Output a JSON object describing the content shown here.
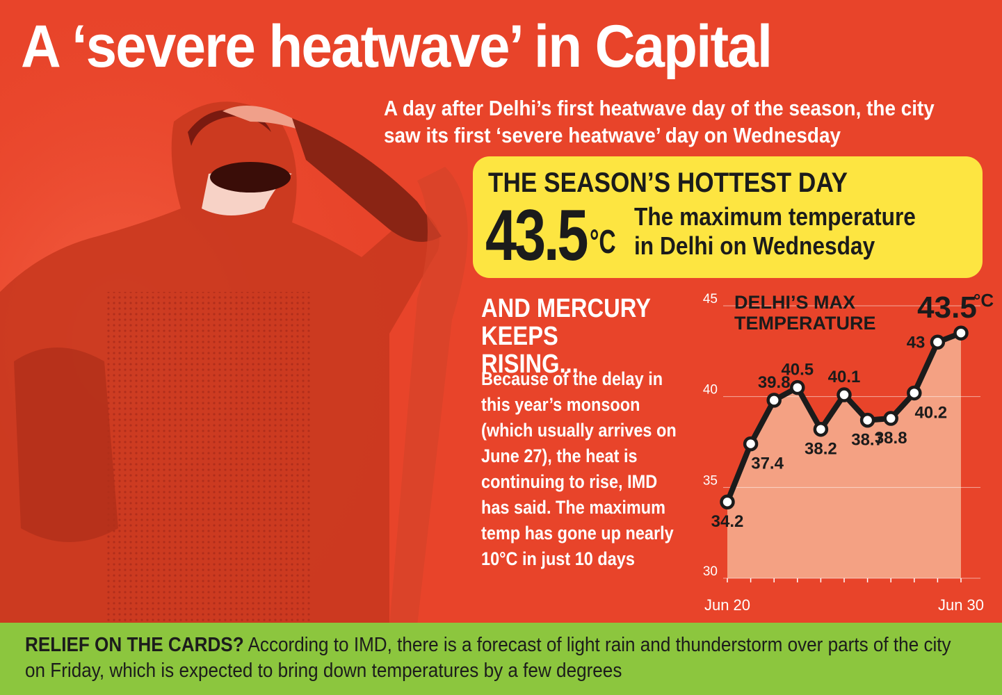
{
  "headline": "A ‘severe heatwave’ in Capital",
  "deck": "A day after Delhi’s first heatwave day of the season, the city saw its first ‘severe heatwave’ day on Wednesday",
  "hottest": {
    "title": "THE SEASON’S HOTTEST DAY",
    "value": "43.5",
    "unit": "°C",
    "description": "The maximum temperature in Delhi on Wednesday"
  },
  "rising": {
    "heading": "AND MERCURY KEEPS RISING...",
    "body": "Because of the delay in this year’s monsoon (which usually arrives on June 27), the heat is continuing to rise, IMD has said. The maximum temp has gone up nearly 10°C in just 10 days"
  },
  "footer": {
    "lead": "RELIEF ON THE CARDS?",
    "text": "According to IMD, there is a forecast of light rain and thunderstorm over parts of the city on Friday, which is expected to bring down temperatures by a few degrees"
  },
  "colors": {
    "background": "#e8442a",
    "highlight": "#fde541",
    "footer": "#8cc63e",
    "area_fill": "#f6b193",
    "line": "#1b1b1b"
  },
  "chart_data": {
    "type": "area",
    "title": "DELHI’S MAX TEMPERATURE",
    "x": [
      "Jun 20",
      "Jun 21",
      "Jun 22",
      "Jun 23",
      "Jun 24",
      "Jun 25",
      "Jun 26",
      "Jun 27",
      "Jun 28",
      "Jun 29",
      "Jun 30"
    ],
    "x_tick_labels": [
      "Jun 20",
      "Jun 30"
    ],
    "values": [
      34.2,
      37.4,
      39.8,
      40.5,
      38.2,
      40.1,
      38.7,
      38.8,
      40.2,
      43,
      43.5
    ],
    "data_labels": [
      "34.2",
      "37.4",
      "39.8",
      "40.5",
      "38.2",
      "40.1",
      "38.7",
      "38.8",
      "40.2",
      "43",
      "43.5°C"
    ],
    "ylim": [
      30,
      45
    ],
    "yticks": [
      30,
      35,
      40,
      45
    ],
    "grid": true
  }
}
